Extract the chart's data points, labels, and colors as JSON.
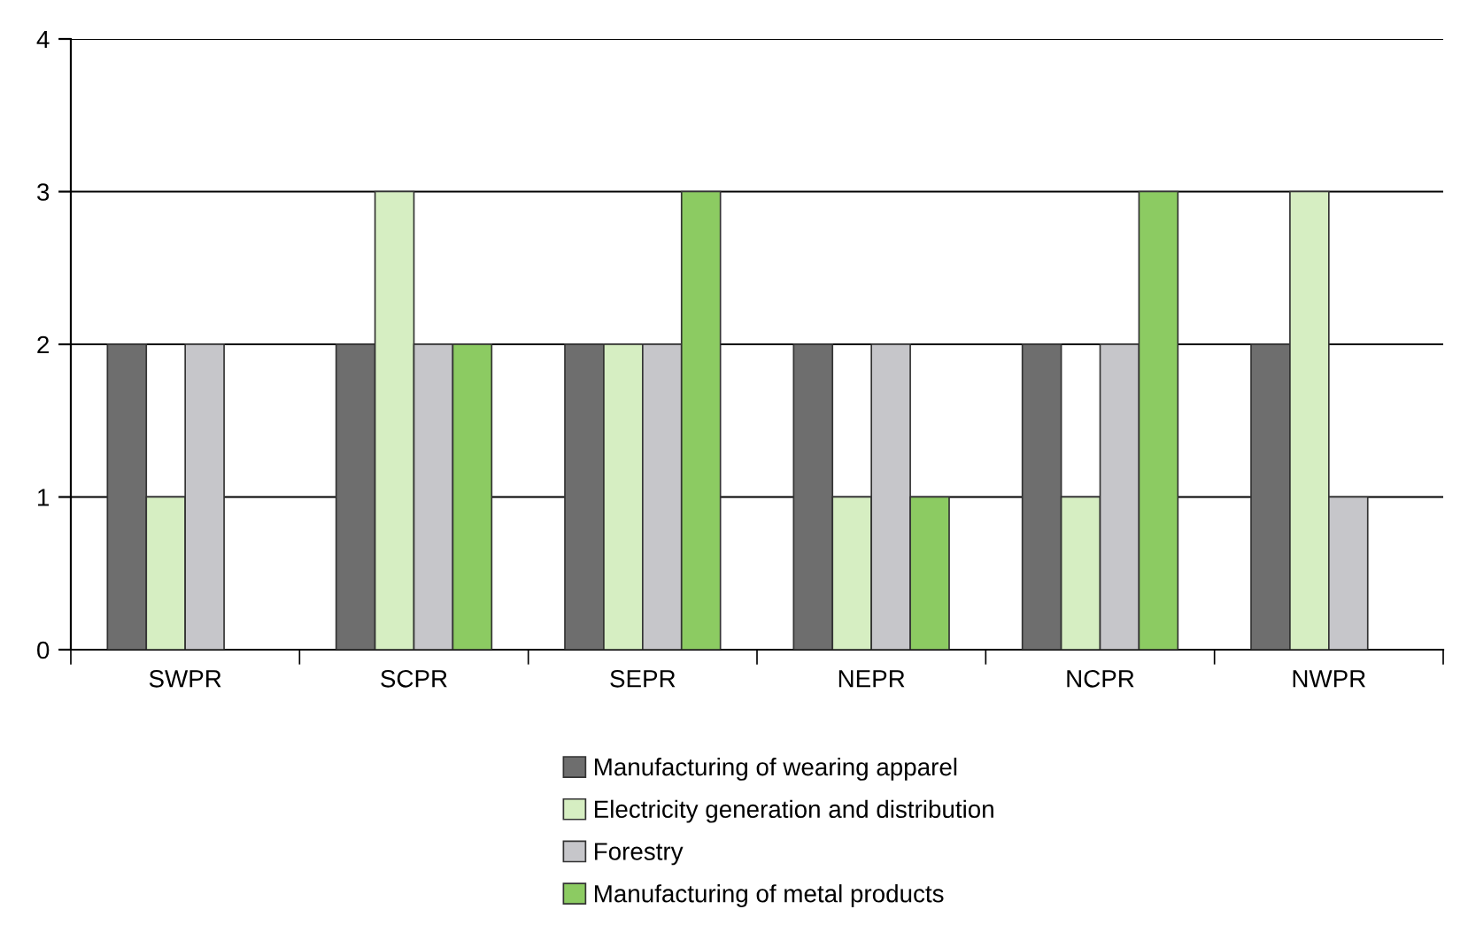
{
  "chart_data": {
    "type": "bar",
    "categories": [
      "SWPR",
      "SCPR",
      "SEPR",
      "NEPR",
      "NCPR",
      "NWPR"
    ],
    "series": [
      {
        "name": "Manufacturing of wearing apparel",
        "color": "#6e6e6e",
        "values": [
          2,
          2,
          2,
          2,
          2,
          2
        ]
      },
      {
        "name": "Electricity generation and distribution",
        "color": "#d6eec2",
        "values": [
          1,
          3,
          2,
          1,
          1,
          3
        ]
      },
      {
        "name": "Forestry",
        "color": "#c6c6ca",
        "values": [
          2,
          2,
          2,
          2,
          2,
          1
        ]
      },
      {
        "name": "Manufacturing of metal products",
        "color": "#8ccb62",
        "values": [
          null,
          2,
          3,
          1,
          3,
          null
        ]
      }
    ],
    "ylim": [
      0,
      4
    ],
    "yticks": [
      0,
      1,
      2,
      3,
      4
    ],
    "grid": "y",
    "legend": "bottom"
  }
}
